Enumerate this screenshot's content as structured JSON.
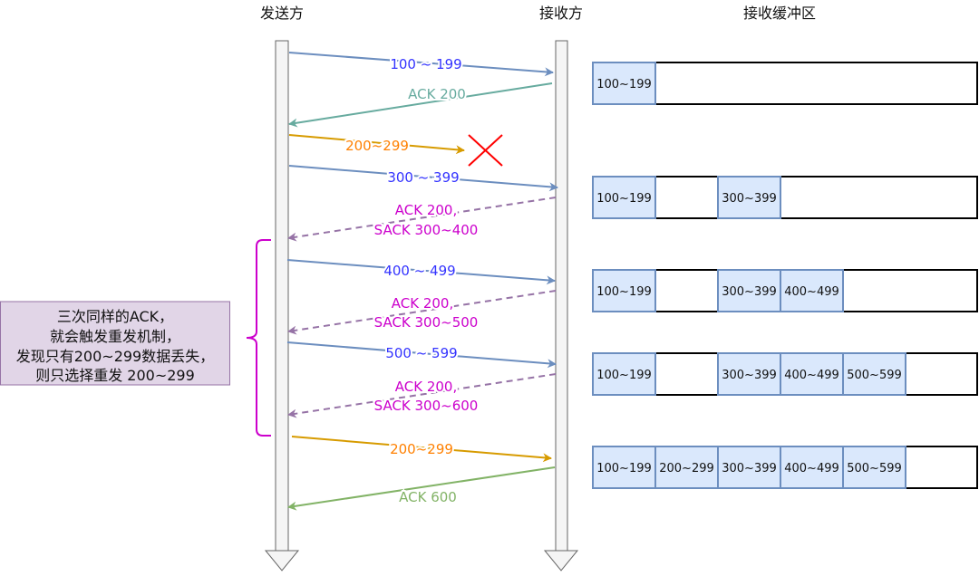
{
  "headers": {
    "sender": "发送方",
    "receiver": "接收方",
    "buffer": "接收缓冲区"
  },
  "colors": {
    "blue": "#6c8ebf",
    "blue_text": "#3333ff",
    "teal": "#67ab9f",
    "orange": "#d79b00",
    "orange_text": "#ff8000",
    "purple": "#9673a6",
    "magenta": "#cc00cc",
    "green": "#82b366",
    "cell_fill": "#dae8fc",
    "note_fill": "#e1d5e7",
    "lost_x": "#ff0000"
  },
  "messages": {
    "m1": "100 ~ 199",
    "m2": "ACK 200",
    "m3": "200~299",
    "m4": "300 ~ 399",
    "m5a": "ACK 200,",
    "m5b": "SACK 300~400",
    "m6": "400 ~ 499",
    "m7a": "ACK 200,",
    "m7b": "SACK 300~500",
    "m8": "500 ~ 599",
    "m9a": "ACK 200,",
    "m9b": "SACK 300~600",
    "m10": "200~299",
    "m11": "ACK 600"
  },
  "buffers": [
    [
      "100~199",
      "",
      "",
      "",
      ""
    ],
    [
      "100~199",
      "",
      "300~399",
      "",
      ""
    ],
    [
      "100~199",
      "",
      "300~399",
      "400~499",
      ""
    ],
    [
      "100~199",
      "",
      "300~399",
      "400~499",
      "500~599"
    ],
    [
      "100~199",
      "200~299",
      "300~399",
      "400~499",
      "500~599"
    ]
  ],
  "note": {
    "lines": [
      "三次同样的ACK，",
      "就会触发重发机制，",
      "发现只有200~299数据丢失，",
      "则只选择重发 200~299"
    ]
  }
}
